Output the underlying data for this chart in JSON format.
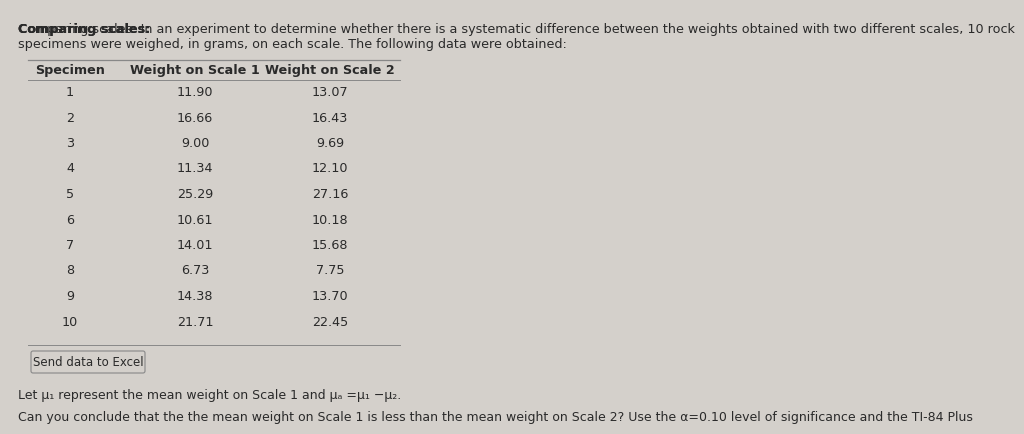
{
  "title_bold": "Comparing scales:",
  "title_rest_line1": " In an experiment to determine whether there is a systematic difference between the weights obtained with two different scales, 10 rock",
  "title_line2": "specimens were weighed, in grams, on each scale. The following data were obtained:",
  "col_headers": [
    "Specimen",
    "Weight on Scale 1",
    "Weight on Scale 2"
  ],
  "specimens": [
    1,
    2,
    3,
    4,
    5,
    6,
    7,
    8,
    9,
    10
  ],
  "scale1": [
    11.9,
    16.66,
    9.0,
    11.34,
    25.29,
    10.61,
    14.01,
    6.73,
    14.38,
    21.71
  ],
  "scale2": [
    13.07,
    16.43,
    9.69,
    12.1,
    27.16,
    10.18,
    15.68,
    7.75,
    13.7,
    22.45
  ],
  "send_data_label": "Send data to Excel",
  "footnote1_pre": "Let ",
  "footnote1_mu1": "μ",
  "footnote1_mid": " represent the mean weight on Scale 1 and ",
  "footnote1_mud": "μ",
  "footnote1_end": " =μ₁ −μ₂.",
  "footnote2": "Can you conclude that the the mean weight on Scale 1 is less than the mean weight on Scale 2? Use the α=0.10 level of significance and the TI-84 Plus",
  "bg_color": "#d4d0cb",
  "text_color": "#2a2a2a",
  "header_color": "#2a2a2a",
  "line_color": "#888888",
  "font_size_title": 9.2,
  "font_size_table": 9.2,
  "font_size_footnote": 9.0
}
